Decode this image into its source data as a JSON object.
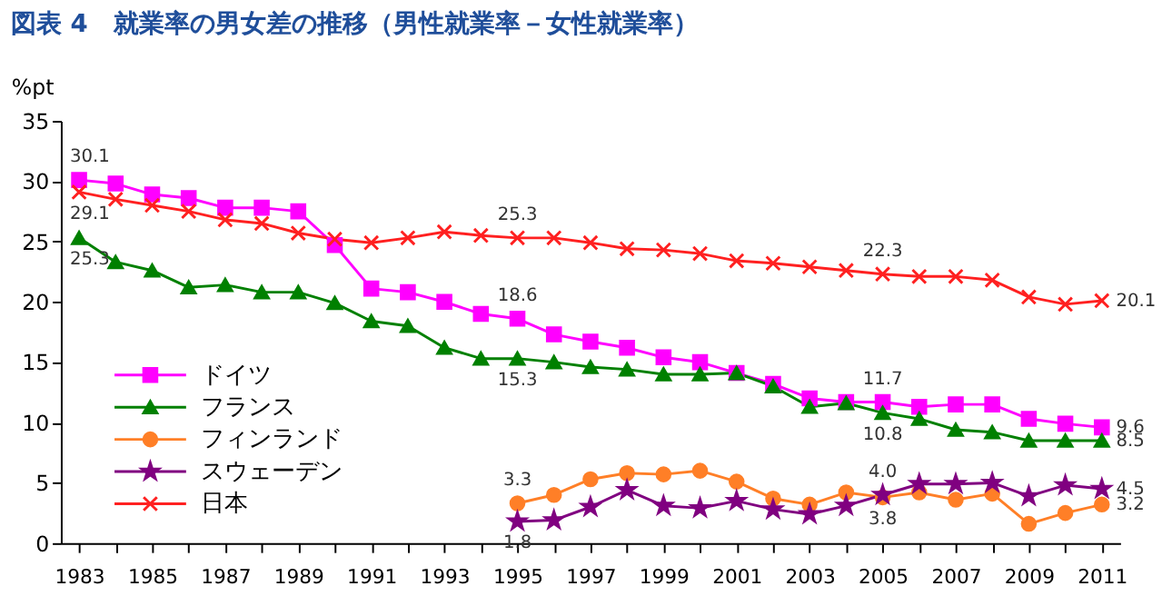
{
  "chart_data": {
    "type": "line",
    "title": "図表 4　就業率の男女差の推移（男性就業率－女性就業率）",
    "ylabel": "%pt",
    "x": [
      1983,
      1984,
      1985,
      1986,
      1987,
      1988,
      1989,
      1990,
      1991,
      1992,
      1993,
      1994,
      1995,
      1996,
      1997,
      1998,
      1999,
      2000,
      2001,
      2002,
      2003,
      2004,
      2005,
      2006,
      2007,
      2008,
      2009,
      2010,
      2011
    ],
    "series": [
      {
        "name": "ドイツ",
        "color": "#ff00ff",
        "marker": "square",
        "values": [
          30.1,
          29.8,
          28.9,
          28.6,
          27.8,
          27.8,
          27.5,
          24.7,
          21.1,
          20.8,
          20.0,
          19.0,
          18.6,
          17.3,
          16.7,
          16.2,
          15.4,
          15.0,
          14.1,
          13.2,
          12.0,
          11.7,
          11.7,
          11.3,
          11.5,
          11.5,
          10.3,
          9.9,
          9.6
        ]
      },
      {
        "name": "フランス",
        "color": "#008000",
        "marker": "triangle",
        "values": [
          25.3,
          23.3,
          22.6,
          21.2,
          21.4,
          20.8,
          20.8,
          19.9,
          18.4,
          18.0,
          16.2,
          15.3,
          15.3,
          15.0,
          14.6,
          14.4,
          14.0,
          14.0,
          14.1,
          13.0,
          11.3,
          11.6,
          10.8,
          10.3,
          9.4,
          9.2,
          8.5,
          8.5,
          8.5
        ]
      },
      {
        "name": "フィンランド",
        "color": "#ff7f27",
        "marker": "circle",
        "values": [
          null,
          null,
          null,
          null,
          null,
          null,
          null,
          null,
          null,
          null,
          null,
          null,
          3.3,
          4.0,
          5.3,
          5.8,
          5.7,
          6.0,
          5.1,
          3.7,
          3.2,
          4.2,
          3.8,
          4.2,
          3.6,
          4.1,
          1.6,
          2.5,
          3.2
        ]
      },
      {
        "name": "スウェーデン",
        "color": "#800080",
        "marker": "star",
        "values": [
          null,
          null,
          null,
          null,
          null,
          null,
          null,
          null,
          null,
          null,
          null,
          null,
          1.8,
          1.9,
          3.0,
          4.4,
          3.1,
          2.9,
          3.5,
          2.8,
          2.4,
          3.1,
          4.0,
          4.9,
          4.9,
          5.0,
          3.9,
          4.8,
          4.5
        ]
      },
      {
        "name": "日本",
        "color": "#ff2020",
        "marker": "cross",
        "values": [
          29.1,
          28.5,
          28.0,
          27.5,
          26.8,
          26.5,
          25.7,
          25.2,
          24.9,
          25.3,
          25.8,
          25.5,
          25.3,
          25.3,
          24.9,
          24.4,
          24.3,
          24.0,
          23.4,
          23.2,
          22.9,
          22.6,
          22.3,
          22.1,
          22.1,
          21.8,
          20.4,
          19.8,
          20.1
        ]
      }
    ],
    "annotations": [
      {
        "text": "30.1",
        "x": 1983,
        "y": 30.1
      },
      {
        "text": "29.1",
        "x": 1983,
        "y": 29.1
      },
      {
        "text": "25.3",
        "x": 1983,
        "y": 25.3
      },
      {
        "text": "25.3",
        "x": 1995,
        "y": 25.3
      },
      {
        "text": "18.6",
        "x": 1995,
        "y": 18.6
      },
      {
        "text": "15.3",
        "x": 1995,
        "y": 15.3
      },
      {
        "text": "3.3",
        "x": 1995,
        "y": 3.3
      },
      {
        "text": "1.8",
        "x": 1995,
        "y": 1.8
      },
      {
        "text": "22.3",
        "x": 2005,
        "y": 22.3
      },
      {
        "text": "11.7",
        "x": 2005,
        "y": 11.7
      },
      {
        "text": "10.8",
        "x": 2005,
        "y": 10.8
      },
      {
        "text": "4.0",
        "x": 2005,
        "y": 4.0
      },
      {
        "text": "3.8",
        "x": 2005,
        "y": 3.8
      },
      {
        "text": "20.1",
        "x": 2011,
        "y": 20.1
      },
      {
        "text": "9.6",
        "x": 2011,
        "y": 9.6
      },
      {
        "text": "8.5",
        "x": 2011,
        "y": 8.5
      },
      {
        "text": "4.5",
        "x": 2011,
        "y": 4.5
      },
      {
        "text": "3.2",
        "x": 2011,
        "y": 3.2
      }
    ],
    "xlim": [
      1982.5,
      2011.5
    ],
    "xticks": [
      1983,
      {
        "value": 1984,
        "label": null
      },
      1985,
      {
        "value": 1986,
        "label": null
      },
      1987,
      {
        "value": 1988,
        "label": null
      },
      1989,
      {
        "value": 1990,
        "label": null
      },
      1991,
      {
        "value": 1992,
        "label": null
      },
      1993,
      {
        "value": 1994,
        "label": null
      },
      1995,
      {
        "value": 1996,
        "label": null
      },
      1997,
      {
        "value": 1998,
        "label": null
      },
      1999,
      {
        "value": 2000,
        "label": null
      },
      2001,
      {
        "value": 2002,
        "label": null
      },
      2003,
      {
        "value": 2004,
        "label": null
      },
      2005,
      {
        "value": 2006,
        "label": null
      },
      2007,
      {
        "value": 2008,
        "label": null
      },
      2009,
      {
        "value": 2010,
        "label": null
      },
      2011
    ],
    "ylim": [
      0,
      35
    ],
    "yticks": [
      0,
      5,
      10,
      15,
      20,
      25,
      30,
      35
    ],
    "grid": false,
    "legend": "bottom left"
  }
}
